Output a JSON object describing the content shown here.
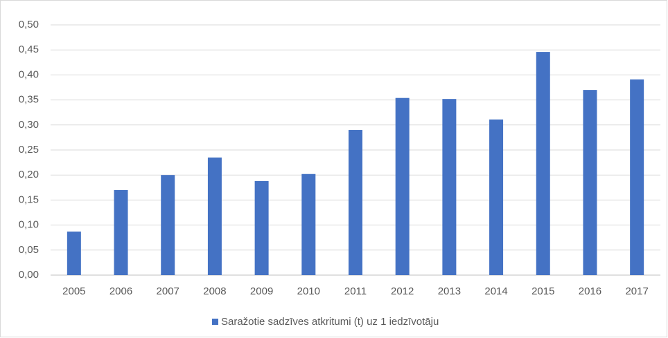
{
  "chart_data": {
    "type": "bar",
    "categories": [
      "2005",
      "2006",
      "2007",
      "2008",
      "2009",
      "2010",
      "2011",
      "2012",
      "2013",
      "2014",
      "2015",
      "2016",
      "2017"
    ],
    "series": [
      {
        "name": "Saražotie sadzīves atkritumi (t) uz 1 iedzīvotāju",
        "color": "#4472c4",
        "values": [
          0.087,
          0.17,
          0.2,
          0.235,
          0.188,
          0.202,
          0.29,
          0.354,
          0.352,
          0.311,
          0.446,
          0.37,
          0.391
        ]
      }
    ],
    "ylim": [
      0,
      0.5
    ],
    "yticks": [
      {
        "value": 0,
        "label": "0,00"
      },
      {
        "value": 0.05,
        "label": "0,05"
      },
      {
        "value": 0.1,
        "label": "0,10"
      },
      {
        "value": 0.15,
        "label": "0,15"
      },
      {
        "value": 0.2,
        "label": "0,20"
      },
      {
        "value": 0.25,
        "label": "0,25"
      },
      {
        "value": 0.3,
        "label": "0,30"
      },
      {
        "value": 0.35,
        "label": "0,35"
      },
      {
        "value": 0.4,
        "label": "0,40"
      },
      {
        "value": 0.45,
        "label": "0,45"
      },
      {
        "value": 0.5,
        "label": "0,50"
      }
    ],
    "grid": true,
    "legend": "bottom"
  }
}
